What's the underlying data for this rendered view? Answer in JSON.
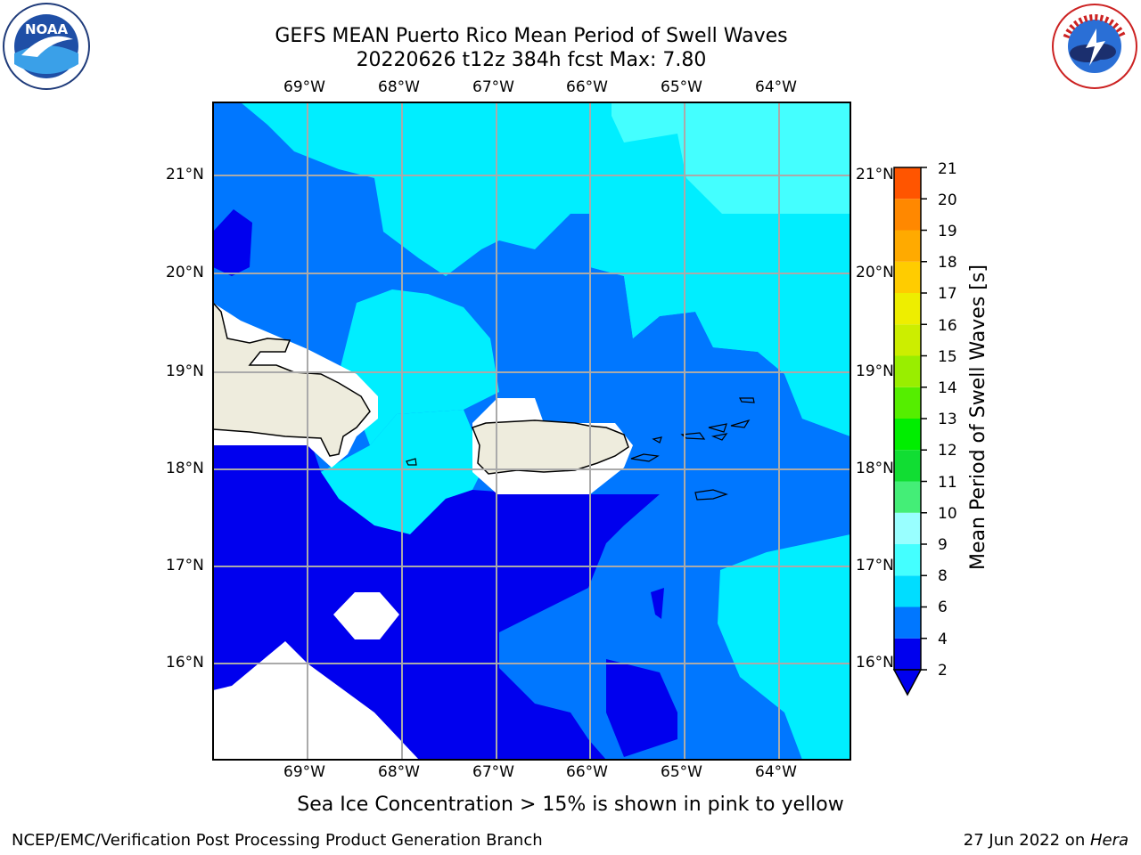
{
  "header": {
    "title_line1": "GEFS MEAN Puerto Rico Mean Period of Swell Waves",
    "title_line2": "20220626 t12z 384h fcst   Max: 7.80"
  },
  "logos": {
    "left": {
      "name": "noaa-logo",
      "text": "NOAA"
    },
    "right": {
      "name": "nws-logo",
      "text": "NATIONAL WEATHER SERVICE"
    }
  },
  "axes": {
    "longitude_labels": [
      "69°W",
      "68°W",
      "67°W",
      "66°W",
      "65°W",
      "64°W"
    ],
    "latitude_labels": [
      "21°N",
      "20°N",
      "19°N",
      "18°N",
      "17°N",
      "16°N"
    ]
  },
  "colorbar": {
    "label": "Mean Period of Swell Waves [s]",
    "ticks": [
      "21",
      "20",
      "19",
      "18",
      "17",
      "16",
      "15",
      "14",
      "13",
      "12",
      "11",
      "10",
      "9",
      "8",
      "6",
      "4",
      "2"
    ],
    "colors": [
      "#0000ee",
      "#0077ff",
      "#00ddff",
      "#44ffff",
      "#99ffff",
      "#44ee77",
      "#11dd33",
      "#00ee00",
      "#55ee00",
      "#99ee00",
      "#ccee00",
      "#eeee00",
      "#ffff00",
      "#ffcc00",
      "#ffaa00",
      "#ff8800",
      "#ff5500",
      "#ff2200",
      "#ff0000"
    ]
  },
  "colors": {
    "land": "#eeecdd",
    "band_2_4": "#0000ee",
    "band_4_6": "#0077ff",
    "band_6_8": "#00eeff",
    "band_8_9": "#44ffff",
    "grid": "#aaaaaa"
  },
  "footer": {
    "note": "Sea Ice Concentration > 15% is shown in pink to yellow",
    "left": "NCEP/EMC/Verification Post Processing Product Generation Branch",
    "right_date": "27 Jun 2022 on ",
    "right_machine": "Hera"
  }
}
